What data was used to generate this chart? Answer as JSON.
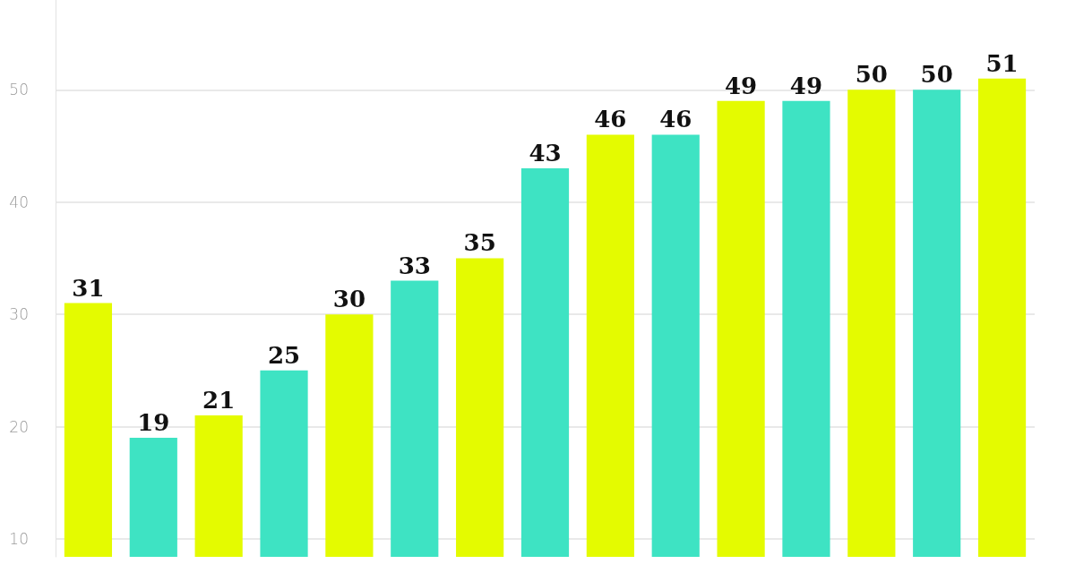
{
  "chart_data": {
    "type": "bar",
    "categories": [
      null,
      null,
      null,
      null,
      null,
      null,
      null,
      null,
      null,
      null,
      null,
      null,
      null,
      null,
      null
    ],
    "values": [
      31,
      19,
      21,
      25,
      30,
      33,
      35,
      43,
      46,
      46,
      49,
      49,
      50,
      50,
      51
    ],
    "colors": [
      "#e4fb00",
      "#3ee3c3",
      "#e4fb00",
      "#3ee3c3",
      "#e4fb00",
      "#3ee3c3",
      "#e4fb00",
      "#3ee3c3",
      "#e4fb00",
      "#3ee3c3",
      "#e4fb00",
      "#3ee3c3",
      "#e4fb00",
      "#3ee3c3",
      "#e4fb00"
    ],
    "ylim": [
      8.4,
      58
    ],
    "yticks": [
      10,
      20,
      30,
      40,
      50
    ],
    "grid": "y",
    "data_labels": true
  }
}
